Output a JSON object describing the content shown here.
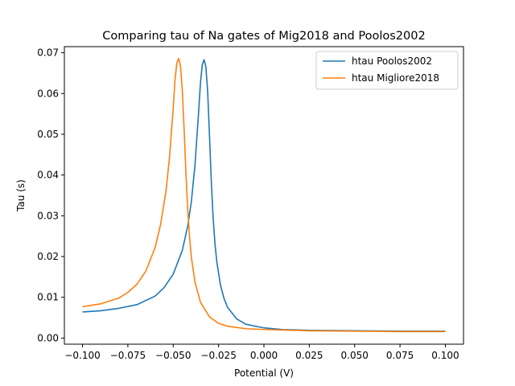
{
  "chart_data": {
    "type": "line",
    "title": "Comparing tau of Na gates of Mig2018 and Poolos2002",
    "xlabel": "Potential (V)",
    "ylabel": "Tau (s)",
    "xlim": [
      -0.11,
      0.11
    ],
    "ylim": [
      -0.0015,
      0.0715
    ],
    "xticks": [
      -0.1,
      -0.075,
      -0.05,
      -0.025,
      0.0,
      0.025,
      0.05,
      0.075,
      0.1
    ],
    "xtick_labels": [
      "−0.100",
      "−0.075",
      "−0.050",
      "−0.025",
      "0.000",
      "0.025",
      "0.050",
      "0.075",
      "0.100"
    ],
    "yticks": [
      0.0,
      0.01,
      0.02,
      0.03,
      0.04,
      0.05,
      0.06,
      0.07
    ],
    "ytick_labels": [
      "0.00",
      "0.01",
      "0.02",
      "0.03",
      "0.04",
      "0.05",
      "0.06",
      "0.07"
    ],
    "grid": false,
    "legend_position": "top-right",
    "series": [
      {
        "name": "htau Poolos2002",
        "color": "#1f77b4",
        "x": [
          -0.1,
          -0.09,
          -0.08,
          -0.07,
          -0.06,
          -0.055,
          -0.05,
          -0.045,
          -0.042,
          -0.04,
          -0.038,
          -0.036,
          -0.035,
          -0.034,
          -0.033,
          -0.032,
          -0.031,
          -0.03,
          -0.029,
          -0.028,
          -0.027,
          -0.026,
          -0.024,
          -0.022,
          -0.02,
          -0.015,
          -0.01,
          0.0,
          0.01,
          0.025,
          0.05,
          0.075,
          0.1
        ],
        "y": [
          0.0064,
          0.0067,
          0.0073,
          0.0082,
          0.0103,
          0.0124,
          0.0157,
          0.0215,
          0.0275,
          0.0335,
          0.0425,
          0.0555,
          0.0625,
          0.067,
          0.0683,
          0.0665,
          0.0603,
          0.0495,
          0.0383,
          0.0295,
          0.0232,
          0.0188,
          0.0131,
          0.0097,
          0.0075,
          0.0047,
          0.0034,
          0.0025,
          0.0021,
          0.0019,
          0.0018,
          0.0017,
          0.0017
        ]
      },
      {
        "name": "htau Migliore2018",
        "color": "#ff7f0e",
        "x": [
          -0.1,
          -0.09,
          -0.08,
          -0.075,
          -0.07,
          -0.065,
          -0.06,
          -0.057,
          -0.054,
          -0.052,
          -0.05,
          -0.049,
          -0.048,
          -0.047,
          -0.046,
          -0.045,
          -0.044,
          -0.043,
          -0.042,
          -0.041,
          -0.04,
          -0.038,
          -0.035,
          -0.03,
          -0.025,
          -0.02,
          -0.01,
          0.0,
          0.025,
          0.05,
          0.075,
          0.1
        ],
        "y": [
          0.0077,
          0.0084,
          0.0098,
          0.0112,
          0.0132,
          0.0165,
          0.0222,
          0.0278,
          0.036,
          0.0445,
          0.0565,
          0.0635,
          0.0675,
          0.0686,
          0.0668,
          0.0608,
          0.0512,
          0.0405,
          0.0315,
          0.0248,
          0.0198,
          0.0137,
          0.0088,
          0.0052,
          0.0036,
          0.0029,
          0.0023,
          0.0021,
          0.0018,
          0.0017,
          0.0016,
          0.0016
        ]
      }
    ]
  }
}
